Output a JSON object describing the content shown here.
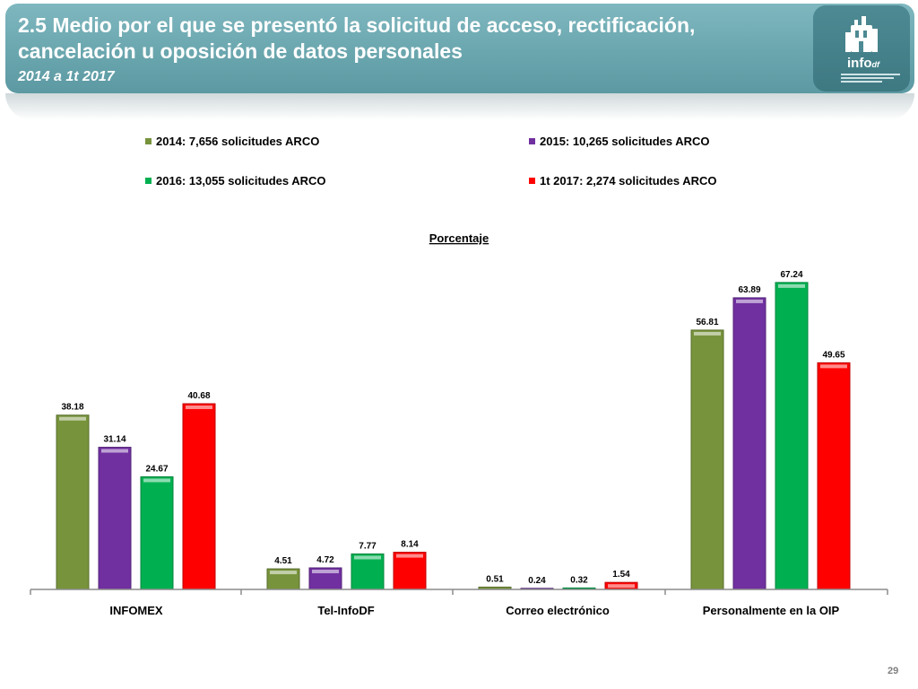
{
  "header": {
    "title": "2.5 Medio por el que se presentó  la solicitud de acceso, rectificación, cancelación u oposición de datos personales",
    "subtitle": "2014 a 1t 2017",
    "logo_text": "info",
    "logo_suffix": "df"
  },
  "page_number": "29",
  "chart_data": {
    "type": "bar",
    "title": "Porcentaje",
    "categories": [
      "INFOMEX",
      "Tel-InfoDF",
      "Correo electrónico",
      "Personalmente en la OIP"
    ],
    "series": [
      {
        "name": "2014: 7,656 solicitudes ARCO",
        "color": "#77933c",
        "values": [
          38.18,
          4.51,
          0.51,
          56.81
        ],
        "labels": [
          "38.18",
          "4.51",
          "0.51",
          "56.81"
        ]
      },
      {
        "name": "2015: 10,265 solicitudes ARCO",
        "color": "#7030a0",
        "values": [
          31.14,
          4.72,
          0.24,
          63.89
        ],
        "labels": [
          "31.14",
          "4.72",
          "0.24",
          "63.89"
        ]
      },
      {
        "name": "2016: 13,055 solicitudes ARCO",
        "color": "#00b050",
        "values": [
          24.67,
          7.77,
          0.32,
          67.24
        ],
        "labels": [
          "24.67",
          "7.77",
          "0.32",
          "67.24"
        ]
      },
      {
        "name": "1t 2017: 2,274 solicitudes ARCO",
        "color": "#ff0000",
        "values": [
          40.68,
          8.14,
          1.54,
          49.65
        ],
        "labels": [
          "40.68",
          "8.14",
          "1.54",
          "49.65"
        ]
      }
    ],
    "ylim": [
      0,
      72
    ],
    "legend_position": "top",
    "grid": false
  }
}
